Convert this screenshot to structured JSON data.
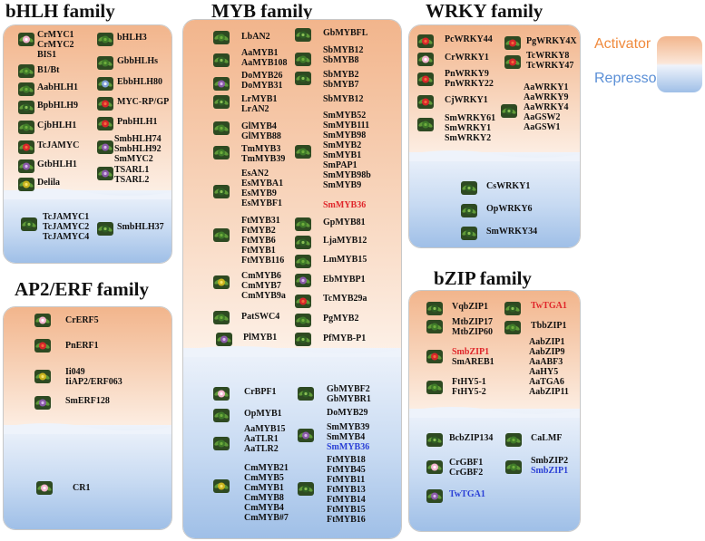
{
  "legend": {
    "activator": "Activator",
    "repressor": "Repressor",
    "activator_color": "#f08a3c",
    "repressor_color": "#5a8fd6"
  },
  "bhlh": {
    "title": "bHLH family",
    "l1": "CrMYC1\nCrMYC2\nBIS1",
    "l2": "B1/Bt",
    "l3": "AabHLH1",
    "l4": "BpbHLH9",
    "l5": "CjbHLH1",
    "l6": "TcJAMYC",
    "l7": "GtbHLH1",
    "l8": "Delila",
    "r1": "bHLH3",
    "r2": "GbbHLHs",
    "r3": "EbbHLH80",
    "r4": "MYC-RP/GP",
    "r5": "PnbHLH1",
    "r6": "SmbHLH74\nSmbHLH92\nSmMYC2",
    "r7": "TSARL1\nTSARL2",
    "rep_l": "TcJAMYC1\nTcJAMYC2\nTcJAMYC4",
    "rep_r": "SmbHLH37"
  },
  "ap2": {
    "title": "AP2/ERF family",
    "a1": "CrERF5",
    "a2": "PnERF1",
    "a3": "Ii049\nIiAP2/ERF063",
    "a4": "SmERF128",
    "r1": "CR1"
  },
  "myb": {
    "title": "MYB family",
    "l1": "LbAN2",
    "l2": "AaMYB1\nAaMYB108",
    "l3": "DoMYB26\nDoMYB31",
    "l4": "LrMYB1\nLrAN2",
    "l5": "GlMYB4\nGlMYB88",
    "l6": "TmMYB3\nTmMYB39",
    "l7": "EsAN2\nEsMYBA1\nEsMYB9\nEsMYBF1",
    "l8": "FtMYB31\nFtMYB2\nFtMYB6\nFtMYB1\nFtMYB116",
    "l9": "CmMYB6\nCmMYB7\nCmMYB9a",
    "l10": "PatSWC4",
    "l11": "PlMYB1",
    "r1": "GbMYBFL",
    "r2": "SbMYB12\nSbMYB8",
    "r3": "SbMYB2\nSbMYB7",
    "r4": "SbMYB12",
    "r5": "SmMYB52\nSmMYB111\nSmMYB98\nSmMYB2\nSmMYB1\nSmPAP1\nSmMYB98b\nSmMYB9",
    "r5_red": "SmMYB36",
    "r6": "GpMYB81",
    "r7": "LjaMYB12",
    "r8": "LmMYB15",
    "r9": "EbMYBP1",
    "r10": "TcMYB29a",
    "r11": "PgMYB2",
    "r12": "PfMYB-P1",
    "rep_l1": "CrBPF1",
    "rep_l2": "OpMYB1",
    "rep_l3": "AaMYB15\nAaTLR1\nAaTLR2",
    "rep_l4": "CmMYB21\nCmMYB5\nCmMYB1\nCmMYB8\nCmMYB4\nCmMYB#7",
    "rep_r1": "GbMYBF2\nGbMYBR1",
    "rep_r2": "DoMYB29",
    "rep_r3": "SmMYB39\nSmMYB4",
    "rep_r3_blue": "SmMYB36",
    "rep_r4": "FtMYB18\nFtMYB45\nFtMYB11\nFtMYB13\nFtMYB14\nFtMYB15\nFtMYB16"
  },
  "wrky": {
    "title": "WRKY family",
    "l1": "PcWRKY44",
    "l2": "CrWRKY1",
    "l3": "PnWRKY9\nPnWRKY22",
    "l4": "CjWRKY1",
    "l5": "SmWRKY61\nSmWRKY1\nSmWRKY2",
    "r1": "PgWRKY4X",
    "r2": "TcWRKY8\nTcWRKY47",
    "r3": "AaWRKY1\nAaWRKY9\nAaWRKY4\nAaGSW2\nAaGSW1",
    "rep1": "CsWRKY1",
    "rep2": "OpWRKY6",
    "rep3": "SmWRKY34"
  },
  "bzip": {
    "title": "bZIP family",
    "l1": "VqbZIP1",
    "l2": "MtbZIP17\nMtbZIP60",
    "l3_red": "SmbZIP1",
    "l3": "SmAREB1",
    "l4": "FtHY5-1\nFtHY5-2",
    "r1_red": "TwTGA1",
    "r2": "TbbZIP1",
    "r3": "AabZIP1\nAabZIP9\nAaABF3\nAaHY5\nAaTGA6\nAabZIP11",
    "rep_l1": "BcbZIP134",
    "rep_l2": "CrGBF1\nCrGBF2",
    "rep_l3_blue": "TwTGA1",
    "rep_r1": "CaLMF",
    "rep_r2": "SmbZIP2",
    "rep_r2_blue": "SmbZIP1"
  },
  "icons": [
    "leaf-icon",
    "flower-icon",
    "pink-flower-icon",
    "red-flower-icon",
    "yellow-flower-icon",
    "purple-flower-icon",
    "herb-icon"
  ]
}
